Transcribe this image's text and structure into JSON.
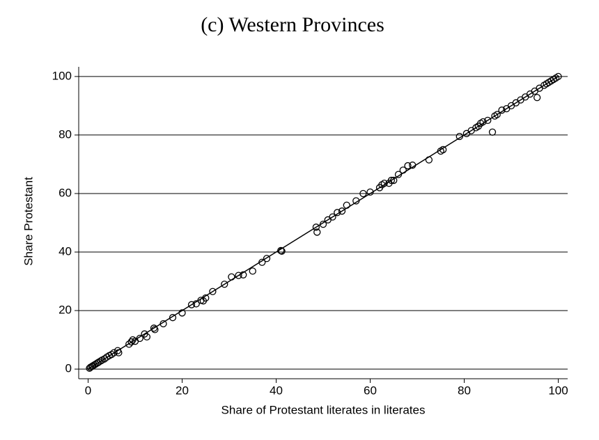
{
  "chart_data": {
    "type": "scatter",
    "title": "(c) Western Provinces",
    "xlabel": "Share of Protestant literates in literates",
    "ylabel": "Share Protestant",
    "x": [
      0.3,
      0.5,
      0.8,
      1,
      1.3,
      1.6,
      2,
      2.3,
      2.7,
      3,
      3.5,
      4,
      4.5,
      5,
      5.5,
      6.3,
      6.5,
      8.7,
      9.2,
      9.5,
      10,
      11,
      12,
      12.5,
      14,
      14.2,
      16,
      18,
      20,
      22,
      23,
      24,
      24.5,
      25,
      26.5,
      29,
      30.5,
      32,
      33,
      35,
      37,
      38,
      41,
      41.2,
      48.5,
      48.7,
      50,
      51,
      52,
      53,
      54,
      55,
      57,
      58.5,
      60,
      62,
      62.5,
      63,
      64,
      64.5,
      65,
      66,
      67,
      68,
      69,
      72.5,
      75,
      75.5,
      79,
      80.5,
      81.5,
      82.5,
      83,
      83.5,
      84,
      85,
      86,
      86.5,
      87,
      88,
      89,
      90,
      91,
      92,
      93,
      94,
      95,
      95.5,
      96,
      97,
      97.5,
      98,
      98.5,
      99,
      99.5,
      100
    ],
    "y": [
      0.3,
      0.6,
      0.9,
      1.1,
      1.4,
      1.7,
      2.1,
      2.4,
      2.8,
      3.1,
      3.5,
      4.1,
      4.6,
      5,
      5.6,
      6.3,
      5.6,
      8.5,
      9.3,
      10,
      9.5,
      10.5,
      12,
      11,
      14,
      13.5,
      15.5,
      17.6,
      19.2,
      22,
      22.3,
      23.5,
      23.3,
      24.3,
      26.5,
      29,
      31.5,
      32,
      32.2,
      33.5,
      36.5,
      37.8,
      40.5,
      40.3,
      48.5,
      46.8,
      49.5,
      51,
      52,
      53.5,
      54,
      56,
      57.5,
      60,
      60.5,
      62,
      63,
      63.5,
      63.5,
      64.5,
      64.5,
      66.5,
      68,
      69.5,
      69.7,
      71.5,
      74.5,
      75,
      79.5,
      80.5,
      81.5,
      82.5,
      83,
      84,
      84.5,
      85,
      81,
      86.5,
      87,
      88.5,
      89,
      90,
      91,
      92,
      93,
      94,
      95,
      92.8,
      96,
      97,
      97.5,
      98,
      98.5,
      99,
      99.5,
      100
    ],
    "fit": {
      "x": [
        0,
        100
      ],
      "y": [
        0,
        100
      ]
    },
    "color": "#000000",
    "xlim": [
      -2,
      102
    ],
    "ylim": [
      -3.3,
      103.3
    ],
    "xticks": [
      0,
      20,
      40,
      60,
      80,
      100
    ],
    "yticks": [
      0,
      20,
      40,
      60,
      80,
      100
    ],
    "grid": true
  }
}
